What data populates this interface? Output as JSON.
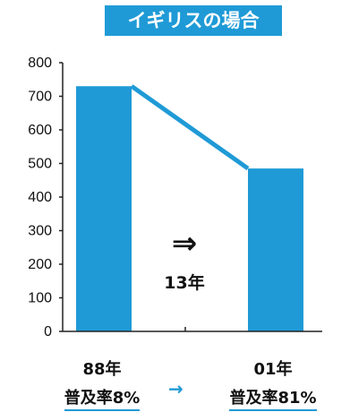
{
  "title": "イギリスの場合",
  "accent_color": "#1f9ad6",
  "chart_data": {
    "type": "bar",
    "categories": [
      "88年",
      "01年"
    ],
    "values": [
      730,
      485
    ],
    "ylim": [
      0,
      800
    ],
    "yticks": [
      0,
      100,
      200,
      300,
      400,
      500,
      600,
      700,
      800
    ],
    "grid": false,
    "connector_line": true
  },
  "categories_detail": [
    {
      "year": "88年",
      "rate": "普及率8%"
    },
    {
      "year": "01年",
      "rate": "普及率81%"
    }
  ],
  "between_arrow": "→",
  "annotation": {
    "arrow": "⇒",
    "text": "13年"
  }
}
